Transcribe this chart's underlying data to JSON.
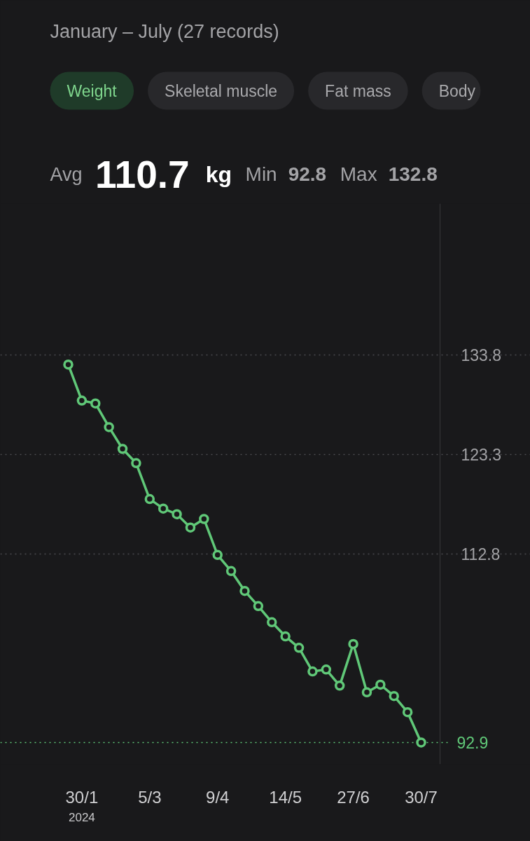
{
  "chart_data": {
    "type": "line",
    "title": "January – July (27 records)",
    "subtitle": "Avg 110.7 kg Min 92.8 Max 132.8",
    "annotations": [
      "Weight",
      "Skeletal muscle",
      "Fat mass",
      "Body",
      "2024"
    ],
    "categories": [
      null,
      "30/1",
      null,
      null,
      null,
      null,
      "5/3",
      null,
      null,
      null,
      null,
      "9/4",
      null,
      null,
      null,
      null,
      "14/5",
      null,
      null,
      null,
      null,
      "27/6",
      null,
      null,
      null,
      null,
      "30/7"
    ],
    "series": [
      {
        "color": "#60c878",
        "values": [
          132.8,
          129.0,
          128.7,
          126.2,
          123.9,
          122.4,
          118.6,
          117.6,
          117.0,
          115.6,
          116.5,
          112.7,
          111.0,
          108.9,
          107.3,
          105.6,
          104.1,
          102.9,
          100.4,
          100.6,
          98.9,
          103.3,
          98.2,
          99.0,
          97.8,
          96.1,
          92.9
        ]
      }
    ],
    "ylim": [
      90.6,
      149.8
    ],
    "yticks": [
      133.8,
      123.3,
      112.8
    ],
    "grid": "y",
    "marker": "circle",
    "line_style": "solid",
    "ref_lines": [
      {
        "axis": "y",
        "value": 92.9,
        "label": "92.9",
        "color": "#60c878",
        "line_style": "dotted"
      }
    ]
  }
}
